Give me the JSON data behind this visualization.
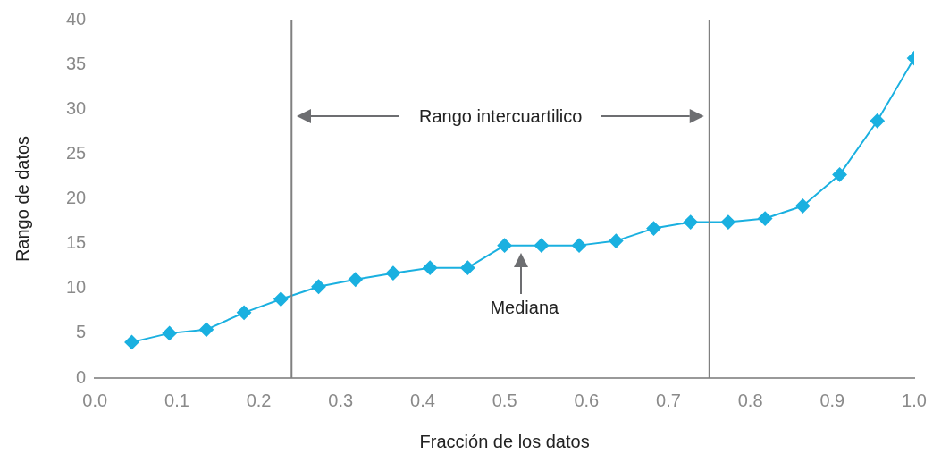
{
  "chart_data": {
    "type": "line",
    "xlabel": "Fracción de los datos",
    "ylabel": "Rango de datos",
    "x": [
      0.045,
      0.091,
      0.136,
      0.182,
      0.227,
      0.273,
      0.318,
      0.364,
      0.409,
      0.455,
      0.5,
      0.545,
      0.591,
      0.636,
      0.682,
      0.727,
      0.773,
      0.818,
      0.864,
      0.909,
      0.955,
      1.0
    ],
    "series": [
      {
        "color": "#1ab0e0",
        "values": [
          4.0,
          5.0,
          5.4,
          7.3,
          8.8,
          10.2,
          11.0,
          11.7,
          12.3,
          12.3,
          14.8,
          14.8,
          14.8,
          15.3,
          16.7,
          17.4,
          17.4,
          17.8,
          19.2,
          22.7,
          28.7,
          35.7
        ]
      }
    ],
    "xlim": [
      0,
      1
    ],
    "xticks": [
      {
        "value": 0,
        "label": "0.0"
      },
      {
        "value": 0.1,
        "label": "0.1"
      },
      {
        "value": 0.2,
        "label": "0.2"
      },
      {
        "value": 0.3,
        "label": "0.3"
      },
      {
        "value": 0.4,
        "label": "0.4"
      },
      {
        "value": 0.5,
        "label": "0.5"
      },
      {
        "value": 0.6,
        "label": "0.6"
      },
      {
        "value": 0.7,
        "label": "0.7"
      },
      {
        "value": 0.8,
        "label": "0.8"
      },
      {
        "value": 0.9,
        "label": "0.9"
      },
      {
        "value": 1,
        "label": "1.0"
      }
    ],
    "ylim": [
      0,
      40
    ],
    "yticks": [
      0,
      5,
      10,
      15,
      20,
      25,
      30,
      35,
      40
    ],
    "ref_lines": [
      {
        "axis": "x",
        "value": 0.24,
        "color": "#808080"
      },
      {
        "axis": "x",
        "value": 0.75,
        "color": "#808080"
      }
    ],
    "annotations": [
      "Rango intercuartilico",
      {
        "text": "Mediana",
        "x": 0.52,
        "y": 14.8
      }
    ],
    "grid": false,
    "legend": false,
    "marker": "diamond",
    "line_style": "solid"
  }
}
